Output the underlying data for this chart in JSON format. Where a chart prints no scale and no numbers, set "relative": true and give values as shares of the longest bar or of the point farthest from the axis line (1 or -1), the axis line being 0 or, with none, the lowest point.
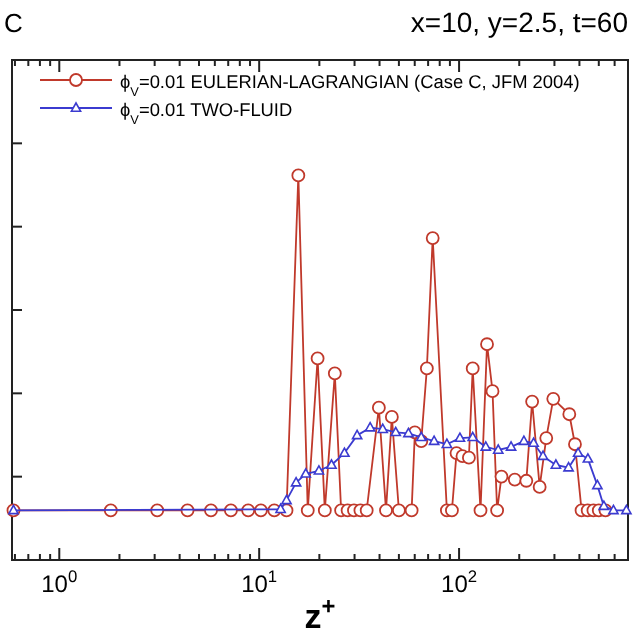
{
  "chart_data": {
    "type": "line",
    "title": "x=10, y=2.5, t=60",
    "xlabel": "z$^{+}$",
    "annotations": [
      "C"
    ],
    "log": "x",
    "relative": true,
    "grid": false,
    "legend": "top left",
    "tick_labels": "x",
    "xlim": [
      0.58,
      700
    ],
    "xticks": [
      {
        "value": 1,
        "label": "10$^{0}$"
      },
      {
        "value": 10,
        "label": "10$^{1}$"
      },
      {
        "value": 100,
        "label": "10$^{2}$"
      }
    ],
    "series": [
      {
        "name": "ϕ$_{V}$=0.01 EULERIAN-LAGRANGIAN (Case C, JFM 2004)",
        "color": "#c0392b",
        "marker": "circle",
        "x": [
          0.59,
          1.81,
          3.09,
          4.38,
          5.74,
          7.22,
          8.81,
          10.2,
          11.9,
          13.7,
          15.7,
          17.5,
          19.6,
          21.3,
          23.9,
          25.7,
          27.7,
          29.8,
          32.1,
          34.5,
          39.7,
          43.1,
          46.1,
          50,
          57.9,
          60.1,
          64.7,
          69,
          73.8,
          86.9,
          92.1,
          97.1,
          104,
          112,
          117,
          128,
          138,
          147,
          155,
          163,
          190,
          217,
          232,
          253,
          273,
          296,
          356,
          380,
          410,
          440,
          470,
          500,
          540
        ],
        "values": [
          0.129,
          0.129,
          0.129,
          0.129,
          0.129,
          0.129,
          0.129,
          0.129,
          0.129,
          0.129,
          1.0,
          0.129,
          0.524,
          0.129,
          0.485,
          0.129,
          0.129,
          0.129,
          0.129,
          0.129,
          0.396,
          0.129,
          0.372,
          0.129,
          0.129,
          0.332,
          0.309,
          0.498,
          0.837,
          0.129,
          0.129,
          0.278,
          0.27,
          0.266,
          0.498,
          0.129,
          0.561,
          0.439,
          0.129,
          0.217,
          0.209,
          0.206,
          0.412,
          0.19,
          0.317,
          0.419,
          0.379,
          0.301,
          0.129,
          0.129,
          0.129,
          0.129,
          0.129
        ]
      },
      {
        "name": "ϕ$_{V}$=0.01 TWO-FLUID",
        "color": "#3b3bd0",
        "marker": "triangle",
        "x": [
          0.59,
          12.8,
          13.7,
          15.3,
          17.1,
          19.9,
          23,
          26.7,
          30.9,
          35.9,
          41.5,
          48.2,
          55.8,
          64.7,
          75,
          86.9,
          101,
          117,
          136,
          157,
          182,
          211,
          236,
          263,
          305,
          353,
          394,
          441,
          492,
          530,
          592,
          687
        ],
        "values": [
          0.129,
          0.132,
          0.155,
          0.201,
          0.224,
          0.232,
          0.247,
          0.278,
          0.324,
          0.344,
          0.34,
          0.332,
          0.329,
          0.319,
          0.309,
          0.301,
          0.317,
          0.319,
          0.294,
          0.286,
          0.294,
          0.309,
          0.304,
          0.27,
          0.247,
          0.24,
          0.278,
          0.263,
          0.194,
          0.14,
          0.129,
          0.129
        ]
      }
    ]
  }
}
